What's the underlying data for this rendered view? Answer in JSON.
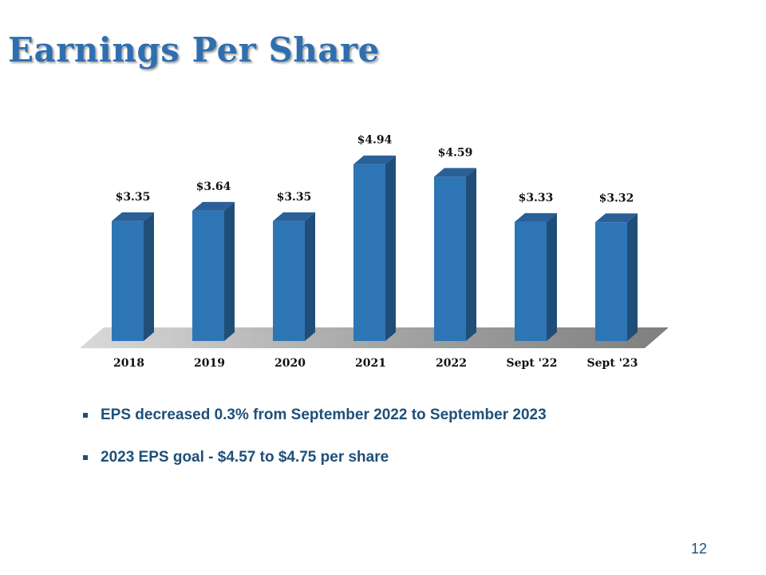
{
  "slide": {
    "title": "Earnings Per Share",
    "page_number": "12"
  },
  "bullets": [
    "EPS decreased 0.3% from September 2022 to September 2023",
    "2023 EPS goal - $4.57 to $4.75 per share"
  ],
  "colors": {
    "title": "#2f6fb0",
    "bar_front": "#2e75b6",
    "bar_side": "#1f4e79",
    "bar_top": "#2a5f98",
    "bullet_text": "#1e4f7a"
  },
  "chart_data": {
    "type": "bar",
    "style": "3d-column",
    "categories": [
      "2018",
      "2019",
      "2020",
      "2021",
      "2022",
      "Sept '22",
      "Sept '23"
    ],
    "values": [
      3.35,
      3.64,
      3.35,
      4.94,
      4.59,
      3.33,
      3.32
    ],
    "data_labels": [
      "$3.35",
      "$3.64",
      "$3.35",
      "$4.94",
      "$4.59",
      "$3.33",
      "$3.32"
    ],
    "title": "",
    "xlabel": "",
    "ylabel": "",
    "ylim": [
      0,
      5.5
    ],
    "grid": false,
    "legend": "none"
  }
}
